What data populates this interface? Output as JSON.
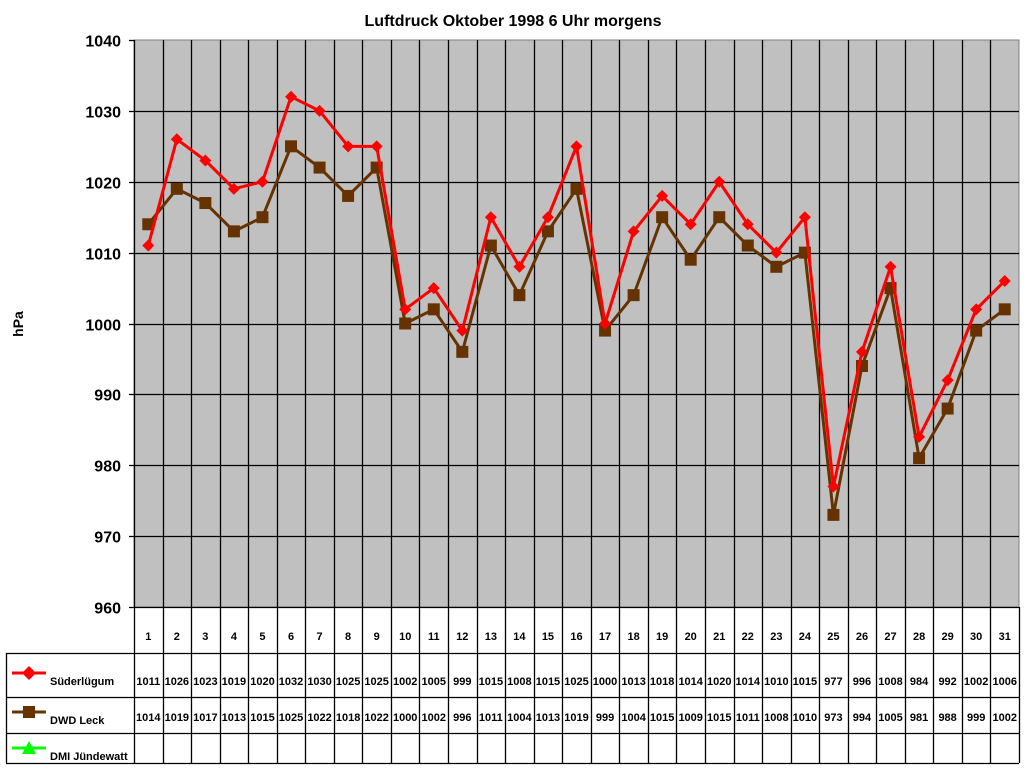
{
  "chart_data": {
    "type": "line",
    "title": "Luftdruck Oktober 1998 6 Uhr morgens",
    "xlabel": "",
    "ylabel": "hPa",
    "ylim": [
      960,
      1040
    ],
    "yticks": [
      960,
      970,
      980,
      990,
      1000,
      1010,
      1020,
      1030,
      1040
    ],
    "grid": true,
    "legend_position": "data-table-left",
    "categories": [
      "1",
      "2",
      "3",
      "4",
      "5",
      "6",
      "7",
      "8",
      "9",
      "10",
      "11",
      "12",
      "13",
      "14",
      "15",
      "16",
      "17",
      "18",
      "19",
      "20",
      "21",
      "22",
      "23",
      "24",
      "25",
      "26",
      "27",
      "28",
      "29",
      "30",
      "31"
    ],
    "series": [
      {
        "name": "Süderlügum",
        "color": "#ff0000",
        "marker": "diamond",
        "values": [
          1011,
          1026,
          1023,
          1019,
          1020,
          1032,
          1030,
          1025,
          1025,
          1002,
          1005,
          999,
          1015,
          1008,
          1015,
          1025,
          1000,
          1013,
          1018,
          1014,
          1020,
          1014,
          1010,
          1015,
          977,
          996,
          1008,
          984,
          992,
          1002,
          1006
        ]
      },
      {
        "name": "DWD Leck",
        "color": "#663300",
        "marker": "square",
        "values": [
          1014,
          1019,
          1017,
          1013,
          1015,
          1025,
          1022,
          1018,
          1022,
          1000,
          1002,
          996,
          1011,
          1004,
          1013,
          1019,
          999,
          1004,
          1015,
          1009,
          1015,
          1011,
          1008,
          1010,
          973,
          994,
          1005,
          981,
          988,
          999,
          1002
        ]
      },
      {
        "name": "DMI Jündewatt",
        "color": "#00ff00",
        "marker": "triangle",
        "values": []
      }
    ]
  },
  "colors": {
    "plot_background": "#c0c0c0",
    "grid": "#000000",
    "plot_border": "#808080"
  }
}
